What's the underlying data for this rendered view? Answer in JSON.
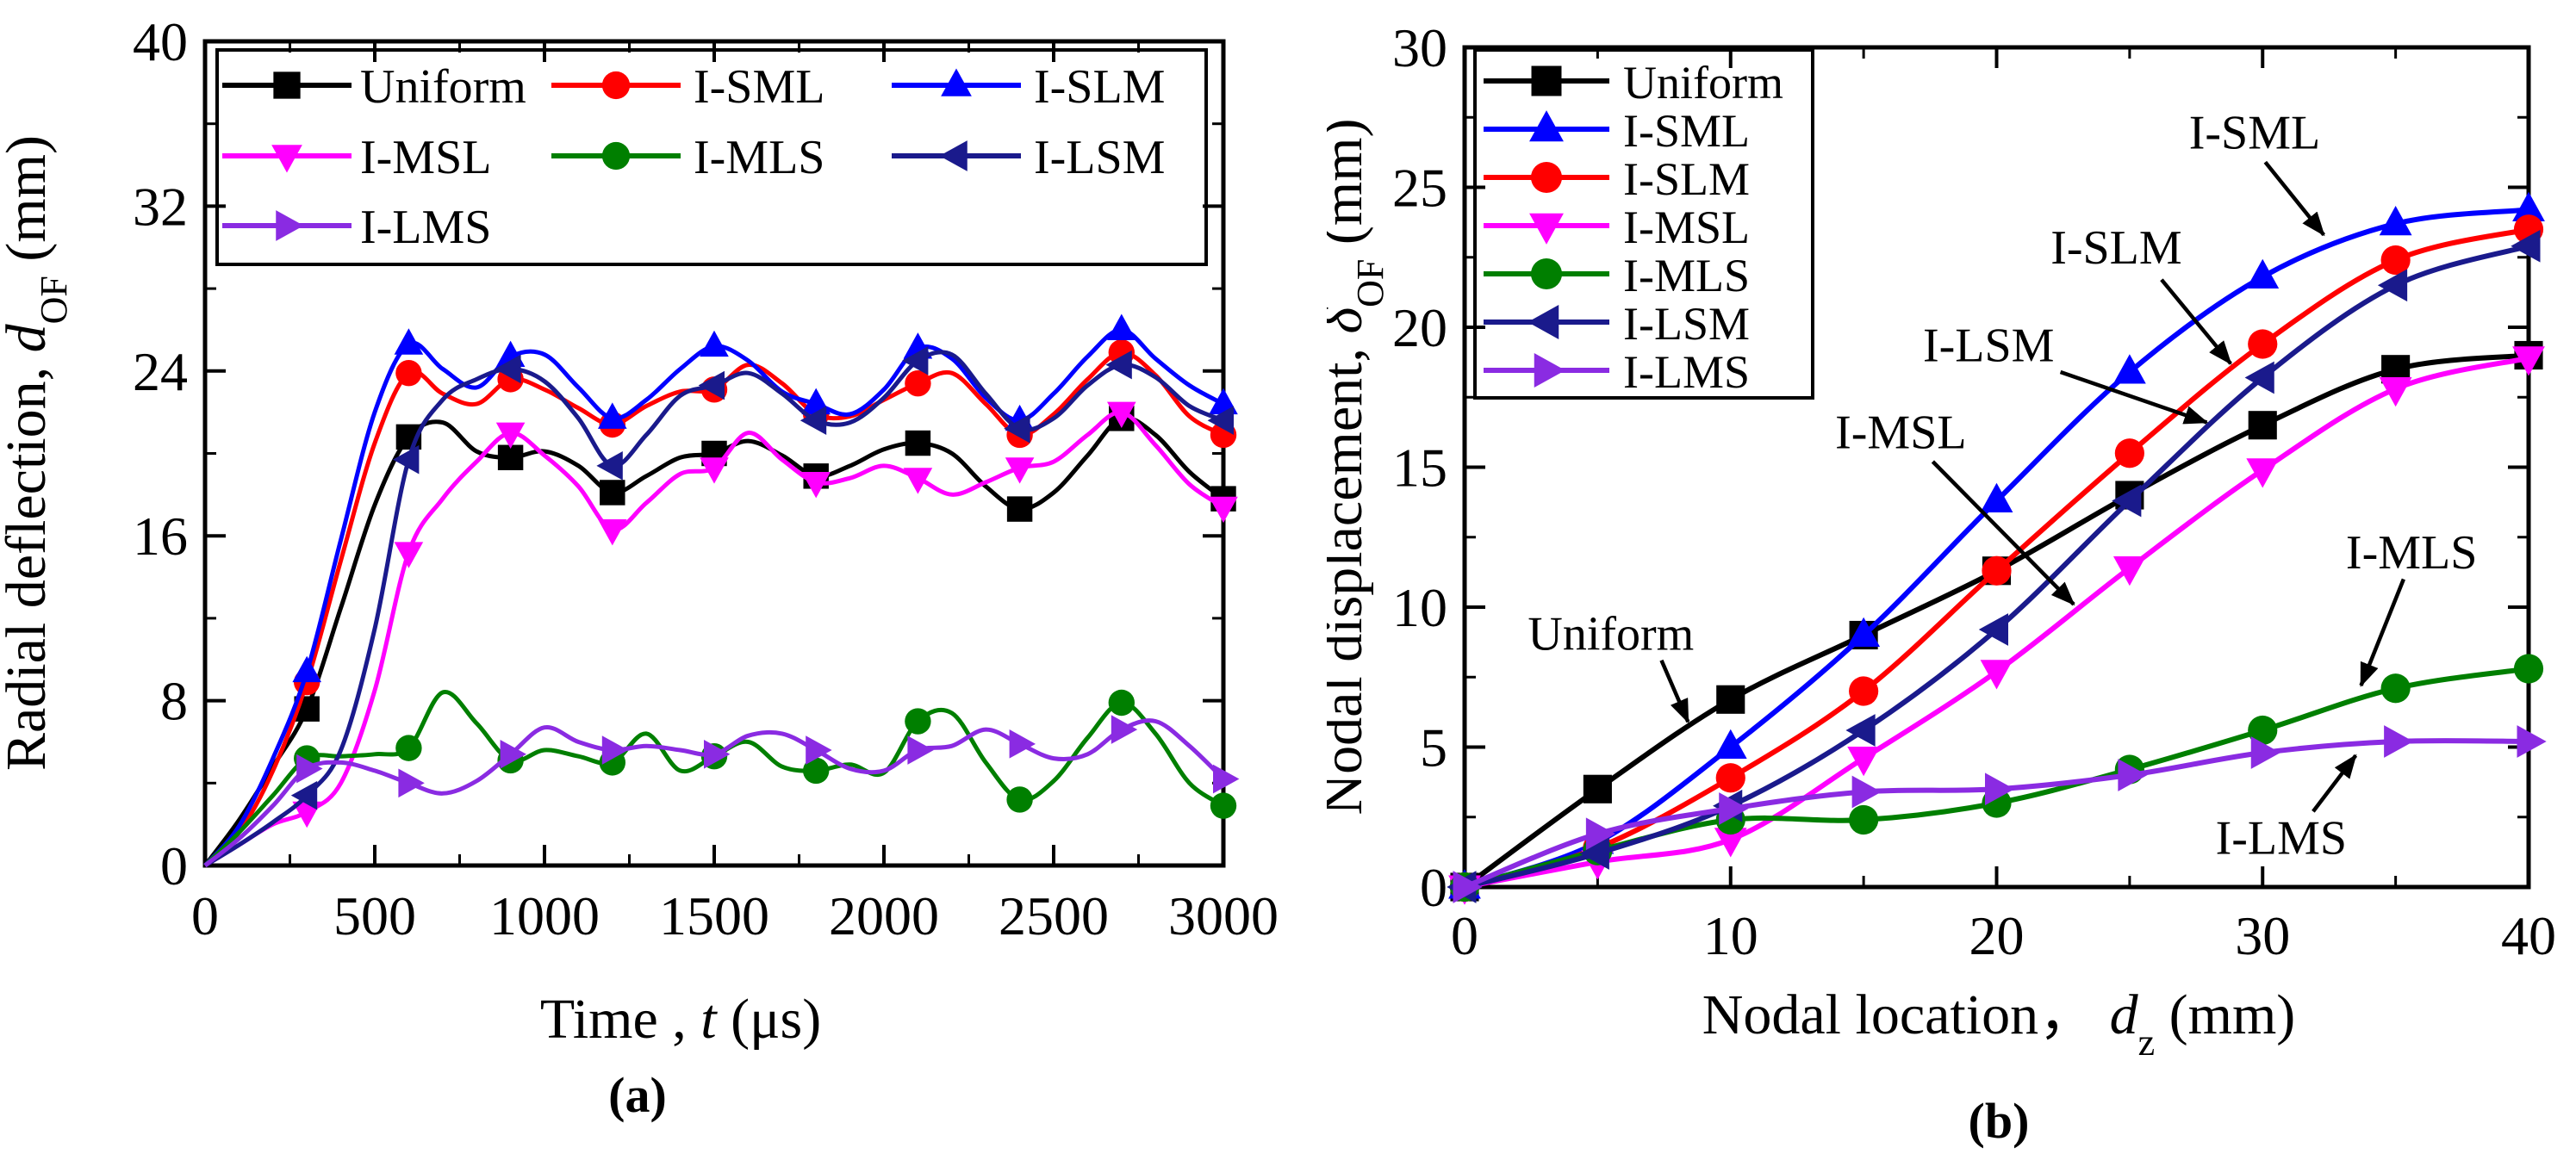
{
  "figure": {
    "caption_a": "(a)",
    "caption_b": "(b)"
  },
  "colors": {
    "black": "#000000",
    "red": "#FF0000",
    "blue": "#0000FF",
    "magenta": "#FF00FF",
    "green": "#007F00",
    "navy": "#1A1A8C",
    "violet": "#8A2BE2"
  },
  "chart_data": [
    {
      "id": "a",
      "type": "line",
      "caption": "(a)",
      "xlabel_parts": [
        {
          "t": "Time , "
        },
        {
          "t": "t",
          "i": true
        },
        {
          "t": " (μs)"
        }
      ],
      "ylabel_parts": [
        {
          "t": "Radial deflection, "
        },
        {
          "t": "d",
          "i": true
        },
        {
          "t": "OF",
          "sub": true
        },
        {
          "t": " (mm)"
        }
      ],
      "xlim": [
        0,
        3000
      ],
      "ylim": [
        0,
        40
      ],
      "xticks": [
        0,
        500,
        1000,
        1500,
        2000,
        2500,
        3000
      ],
      "yticks": [
        0,
        8,
        16,
        24,
        32,
        40
      ],
      "x_minor_step": 250,
      "y_minor_step": 4,
      "grid": false,
      "legend_position": "top-left",
      "legend_columns": 3,
      "x": [
        0,
        100,
        200,
        300,
        400,
        500,
        600,
        700,
        800,
        900,
        1000,
        1100,
        1200,
        1300,
        1400,
        1500,
        1600,
        1700,
        1800,
        1900,
        2000,
        2100,
        2200,
        2300,
        2400,
        2500,
        2600,
        2700,
        2800,
        2900,
        3000
      ],
      "marker_every": 3,
      "marker_start": 3,
      "series": [
        {
          "name": "Uniform",
          "color": "#000000",
          "marker": "square",
          "values": [
            0,
            2.2,
            4.8,
            7.6,
            12.5,
            17.5,
            20.8,
            21.5,
            20.1,
            19.8,
            20.1,
            19.4,
            18.1,
            18.9,
            19.8,
            20.0,
            20.6,
            19.9,
            18.9,
            19.4,
            20.2,
            20.5,
            20.0,
            18.4,
            17.3,
            18.1,
            19.9,
            21.7,
            20.9,
            19.1,
            17.8
          ]
        },
        {
          "name": "I-SML",
          "color": "#FF0000",
          "marker": "circle",
          "values": [
            0,
            1.6,
            4.6,
            8.9,
            14.8,
            20.5,
            23.9,
            22.9,
            22.4,
            23.6,
            23.1,
            22.2,
            21.4,
            22.3,
            23.0,
            23.1,
            24.3,
            23.4,
            21.9,
            21.8,
            22.6,
            23.4,
            23.9,
            22.4,
            20.9,
            21.9,
            23.6,
            24.9,
            23.8,
            21.8,
            20.9
          ]
        },
        {
          "name": "I-SLM",
          "color": "#0000FF",
          "marker": "triangle-up",
          "values": [
            0,
            1.9,
            5.2,
            9.4,
            15.8,
            22.0,
            25.3,
            24.1,
            23.2,
            24.7,
            24.8,
            23.2,
            21.7,
            22.6,
            24.1,
            25.2,
            24.5,
            23.0,
            22.4,
            21.9,
            23.1,
            25.1,
            24.6,
            22.7,
            21.6,
            22.9,
            24.7,
            26.0,
            24.6,
            23.3,
            22.4
          ]
        },
        {
          "name": "I-MSL",
          "color": "#FF00FF",
          "marker": "triangle-down",
          "values": [
            0,
            1.0,
            2.0,
            2.6,
            4.0,
            8.5,
            15.2,
            17.8,
            19.6,
            21.0,
            19.9,
            18.4,
            16.3,
            17.6,
            19.0,
            19.3,
            21.0,
            19.7,
            18.6,
            18.8,
            19.4,
            18.8,
            18.0,
            18.6,
            19.3,
            19.6,
            20.9,
            22.0,
            20.4,
            18.5,
            17.4
          ]
        },
        {
          "name": "I-MLS",
          "color": "#007F00",
          "marker": "circle",
          "values": [
            0,
            1.6,
            3.4,
            5.2,
            5.3,
            5.4,
            5.7,
            8.4,
            6.9,
            5.1,
            5.6,
            5.3,
            5.0,
            6.4,
            4.6,
            5.3,
            6.0,
            4.8,
            4.6,
            4.9,
            4.5,
            7.0,
            7.4,
            5.0,
            3.2,
            4.1,
            6.2,
            7.9,
            6.4,
            4.0,
            2.9
          ]
        },
        {
          "name": "I-LSM",
          "color": "#1A1A8C",
          "marker": "triangle-left",
          "values": [
            0,
            1.0,
            2.1,
            3.4,
            5.6,
            11.5,
            19.7,
            22.6,
            23.6,
            24.1,
            23.5,
            21.7,
            19.4,
            20.9,
            22.8,
            23.3,
            23.9,
            22.9,
            21.6,
            21.5,
            22.7,
            24.5,
            24.8,
            22.9,
            21.2,
            21.7,
            23.3,
            24.3,
            23.7,
            22.3,
            21.6
          ]
        },
        {
          "name": "I-LMS",
          "color": "#8A2BE2",
          "marker": "triangle-right",
          "values": [
            0,
            1.3,
            2.9,
            4.7,
            5.0,
            4.6,
            4.0,
            3.5,
            4.1,
            5.4,
            6.7,
            6.0,
            5.6,
            5.8,
            5.6,
            5.4,
            6.3,
            6.4,
            5.6,
            4.7,
            4.6,
            5.6,
            5.8,
            6.6,
            5.9,
            5.2,
            5.4,
            6.6,
            7.0,
            5.8,
            4.2
          ]
        }
      ],
      "legend_order": [
        "Uniform",
        "I-SML",
        "I-SLM",
        "I-MSL",
        "I-MLS",
        "I-LSM",
        "I-LMS"
      ],
      "annotations": []
    },
    {
      "id": "b",
      "type": "line",
      "caption": "(b)",
      "xlabel_parts": [
        {
          "t": "Nodal location， "
        },
        {
          "t": "d",
          "i": true
        },
        {
          "t": "z",
          "sub": true
        },
        {
          "t": " (mm)"
        }
      ],
      "ylabel_parts": [
        {
          "t": "Nodal displacement,  "
        },
        {
          "t": "δ",
          "i": true
        },
        {
          "t": "OF",
          "sub": true
        },
        {
          "t": " (mm)"
        }
      ],
      "xlim": [
        0,
        40
      ],
      "ylim": [
        0,
        30
      ],
      "xticks": [
        0,
        10,
        20,
        30,
        40
      ],
      "yticks": [
        0,
        5,
        10,
        15,
        20,
        25,
        30
      ],
      "x_minor_step": 5,
      "y_minor_step": 2.5,
      "grid": false,
      "legend_position": "top-left",
      "legend_columns": 1,
      "x": [
        0,
        5,
        10,
        15,
        20,
        25,
        30,
        35,
        40
      ],
      "marker_every": 1,
      "marker_start": 0,
      "series": [
        {
          "name": "Uniform",
          "color": "#000000",
          "marker": "square",
          "values": [
            0,
            3.5,
            6.7,
            9.0,
            11.3,
            14.0,
            16.5,
            18.5,
            19.0
          ]
        },
        {
          "name": "I-SML",
          "color": "#0000FF",
          "marker": "triangle-up",
          "values": [
            0,
            1.6,
            5.0,
            9.0,
            13.8,
            18.4,
            21.8,
            23.7,
            24.2
          ]
        },
        {
          "name": "I-SLM",
          "color": "#FF0000",
          "marker": "circle",
          "values": [
            0,
            1.4,
            3.9,
            7.0,
            11.3,
            15.5,
            19.4,
            22.4,
            23.5
          ]
        },
        {
          "name": "I-MSL",
          "color": "#FF00FF",
          "marker": "triangle-down",
          "values": [
            0,
            0.9,
            1.7,
            4.6,
            7.7,
            11.4,
            14.9,
            17.8,
            18.9
          ]
        },
        {
          "name": "I-MLS",
          "color": "#007F00",
          "marker": "circle",
          "values": [
            0,
            1.3,
            2.4,
            2.4,
            3.0,
            4.2,
            5.6,
            7.1,
            7.8
          ]
        },
        {
          "name": "I-LSM",
          "color": "#1A1A8C",
          "marker": "triangle-left",
          "values": [
            0,
            1.2,
            2.9,
            5.6,
            9.2,
            13.8,
            18.2,
            21.5,
            22.9
          ]
        },
        {
          "name": "I-LMS",
          "color": "#8A2BE2",
          "marker": "triangle-right",
          "values": [
            0,
            1.9,
            2.8,
            3.4,
            3.5,
            4.0,
            4.8,
            5.2,
            5.2
          ]
        }
      ],
      "legend_order": [
        "Uniform",
        "I-SML",
        "I-SLM",
        "I-MSL",
        "I-MLS",
        "I-LSM",
        "I-LMS"
      ],
      "annotations": [
        {
          "text": "Uniform",
          "tx": 5.5,
          "ty": 9.1,
          "arrow": [
            [
              7.4,
              8.1
            ],
            [
              8.4,
              5.9
            ]
          ]
        },
        {
          "text": "I-SML",
          "tx": 29.7,
          "ty": 27.0,
          "arrow": [
            [
              30.1,
              25.9
            ],
            [
              32.3,
              23.3
            ]
          ]
        },
        {
          "text": "I-SLM",
          "tx": 24.5,
          "ty": 22.9,
          "arrow": [
            [
              26.2,
              21.7
            ],
            [
              28.8,
              18.7
            ]
          ]
        },
        {
          "text": "I-LSM",
          "tx": 19.7,
          "ty": 19.4,
          "arrow": [
            [
              22.4,
              18.4
            ],
            [
              27.9,
              16.6
            ]
          ]
        },
        {
          "text": "I-MSL",
          "tx": 16.4,
          "ty": 16.3,
          "arrow": [
            [
              17.6,
              15.2
            ],
            [
              22.9,
              10.1
            ]
          ]
        },
        {
          "text": "I-MLS",
          "tx": 35.6,
          "ty": 12.0,
          "arrow": [
            [
              35.3,
              11.0
            ],
            [
              33.7,
              7.2
            ]
          ]
        },
        {
          "text": "I-LMS",
          "tx": 30.7,
          "ty": 1.8,
          "arrow": [
            [
              31.9,
              2.7
            ],
            [
              33.5,
              4.7
            ]
          ]
        }
      ]
    }
  ]
}
